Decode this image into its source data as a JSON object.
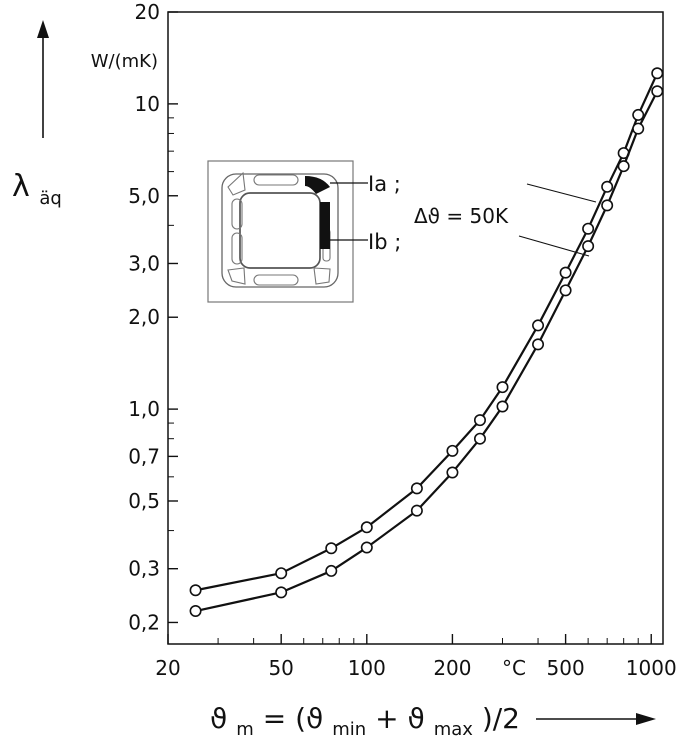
{
  "chart_data": {
    "type": "line",
    "x_scale": "log",
    "y_scale": "log",
    "xlim": [
      20,
      1100
    ],
    "ylim": [
      0.17,
      20
    ],
    "x_ticks": [
      20,
      50,
      100,
      200,
      500,
      1000
    ],
    "x_tick_labels": [
      "20",
      "50",
      "100",
      "200",
      "500",
      "1000"
    ],
    "x_unit_label": "°C",
    "xlabel_parts": {
      "main": "ϑ",
      "main_sub": "m",
      "eq": " = (ϑ",
      "sub1": "min",
      "mid": " + ϑ",
      "sub2": "max",
      "end": ")/2"
    },
    "y_ticks": [
      0.2,
      0.3,
      0.5,
      0.7,
      1.0,
      2.0,
      3.0,
      5.0,
      10,
      20
    ],
    "y_tick_labels": [
      "0,2",
      "0,3",
      "0,5",
      "0,7",
      "1,0",
      "2,0",
      "3,0",
      "5,0",
      "10",
      "20"
    ],
    "y_unit": "W/(mK)",
    "ylabel_main": "λ",
    "ylabel_sub": "äq",
    "series": [
      {
        "name": "Ia",
        "x": [
          25,
          50,
          75,
          100,
          150,
          200,
          250,
          300,
          400,
          500,
          600,
          700,
          800,
          900,
          1050
        ],
        "y": [
          0.255,
          0.29,
          0.35,
          0.41,
          0.55,
          0.73,
          0.92,
          1.18,
          1.88,
          2.8,
          3.9,
          5.35,
          6.9,
          9.2,
          12.6
        ]
      },
      {
        "name": "Ib",
        "x": [
          25,
          50,
          75,
          100,
          150,
          200,
          250,
          300,
          400,
          500,
          600,
          700,
          800,
          900,
          1050
        ],
        "y": [
          0.218,
          0.251,
          0.295,
          0.352,
          0.465,
          0.62,
          0.8,
          1.02,
          1.63,
          2.45,
          3.42,
          4.65,
          6.25,
          8.3,
          11.0
        ]
      }
    ],
    "annotation": "Δϑ = 50K",
    "legend_labels": [
      "Ia ;",
      "Ib ;"
    ]
  }
}
